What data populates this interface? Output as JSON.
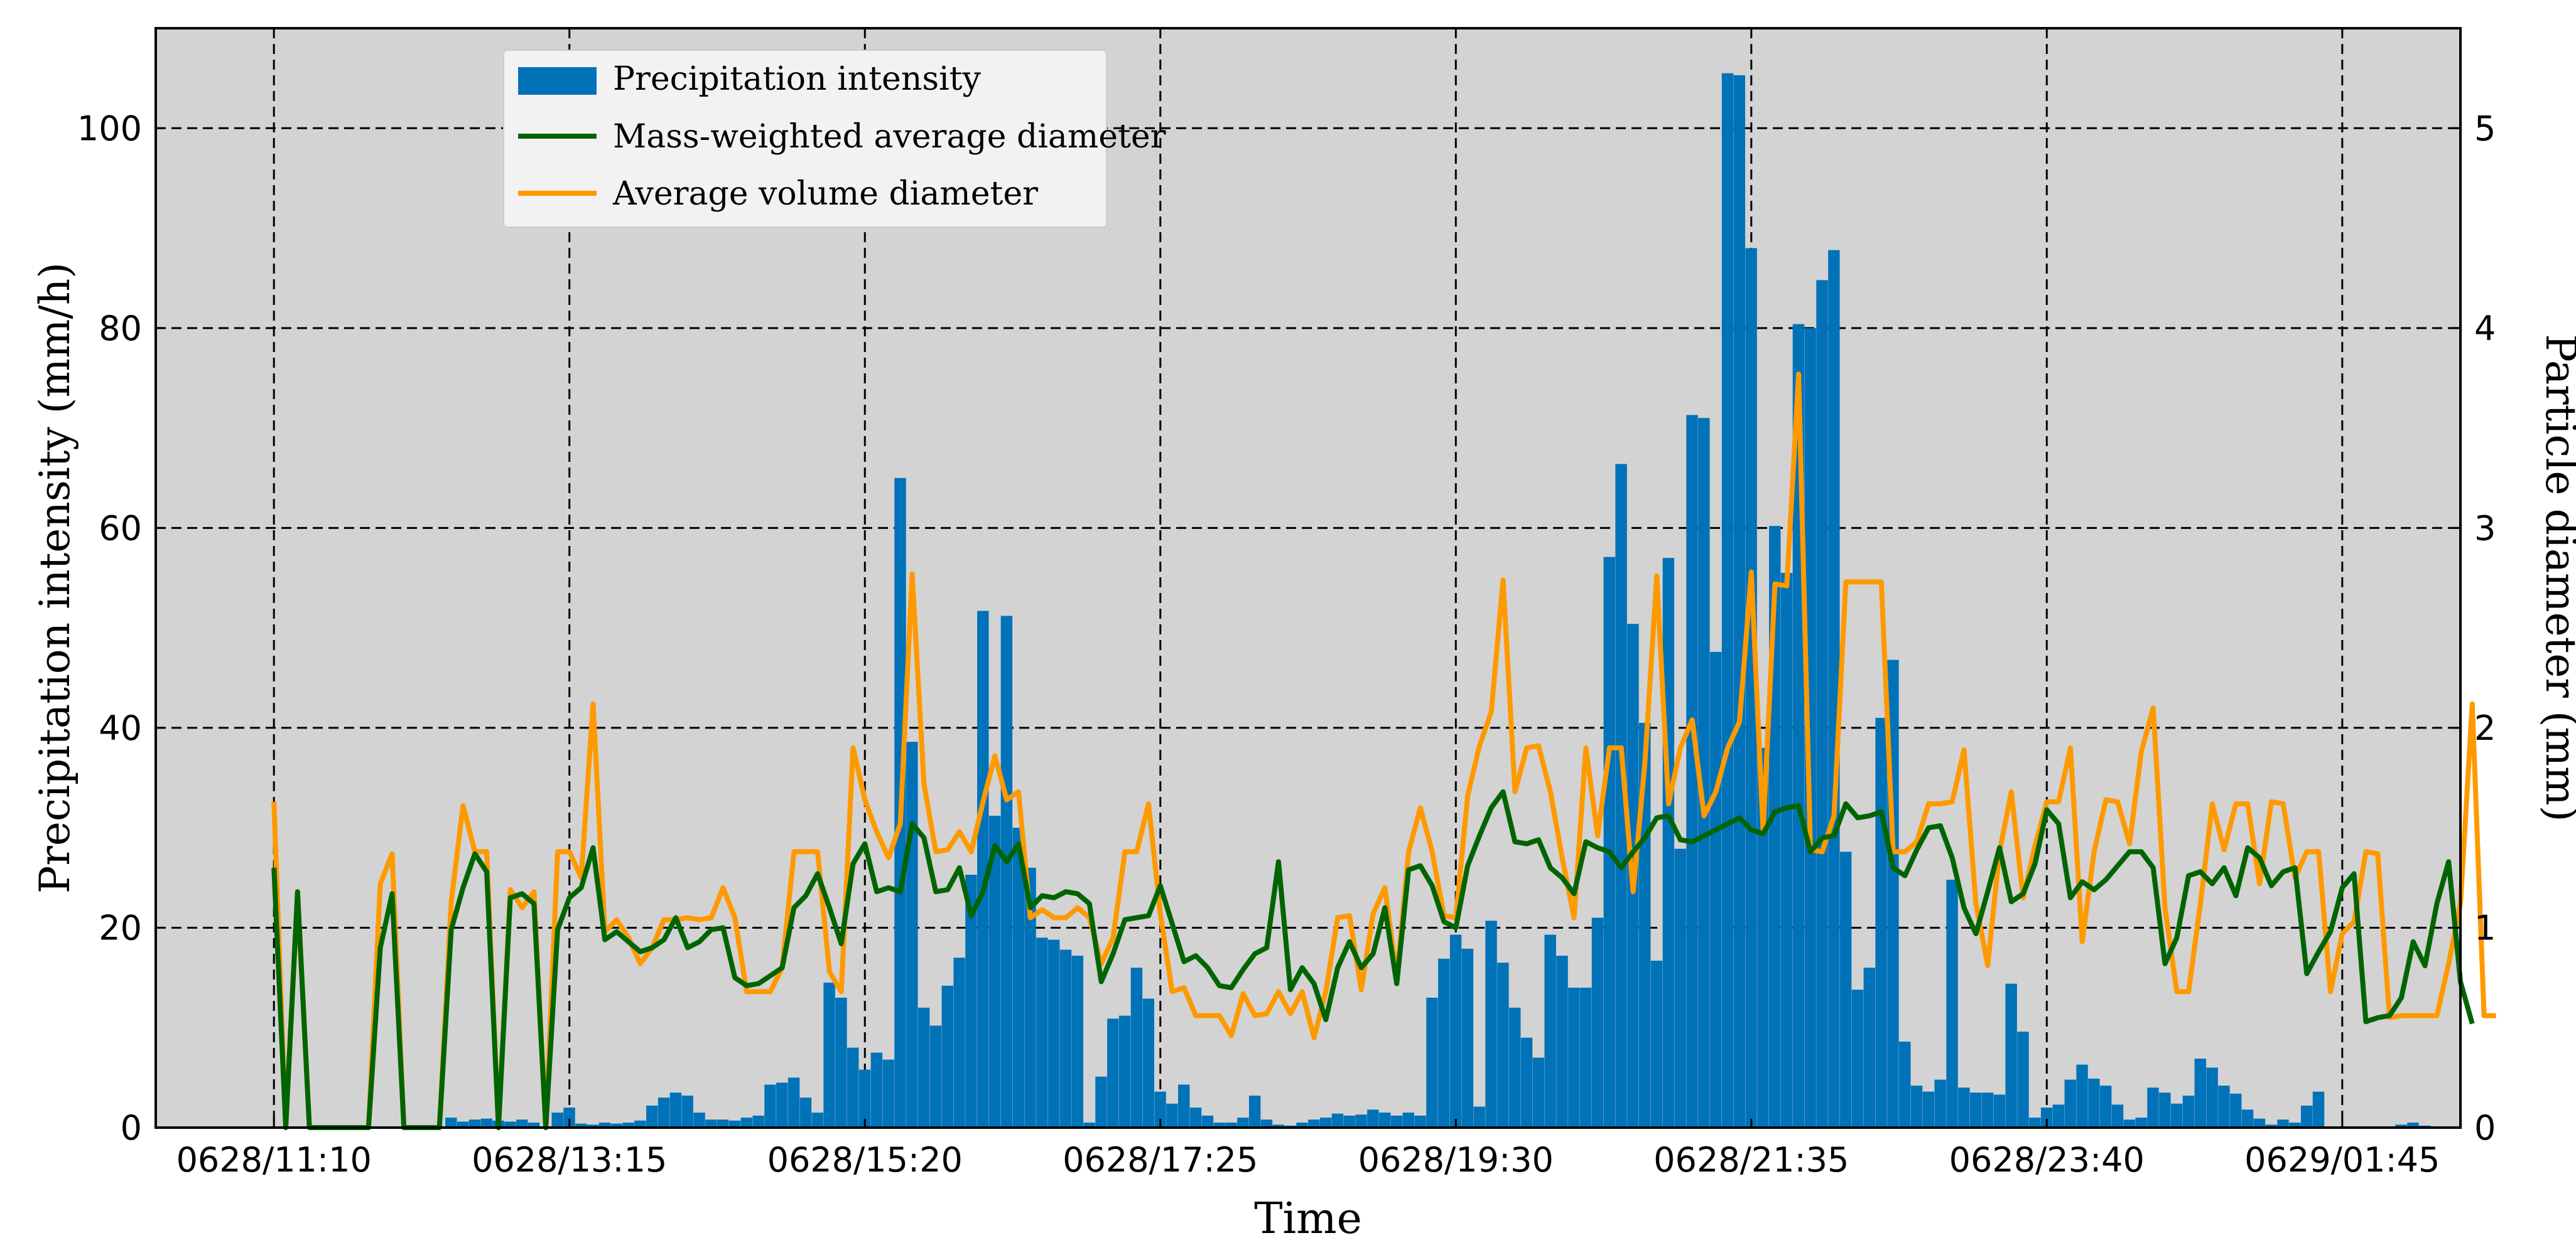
{
  "chart_data": {
    "type": "bar+line",
    "xlabel": "Time",
    "ylabel_left": "Precipitation intensity (mm/h)",
    "ylabel_right": "Particle diameter (mm)",
    "ylim_left": [
      0,
      110
    ],
    "ylim_right": [
      0,
      5.5
    ],
    "yticks_left": [
      "0",
      "20",
      "40",
      "60",
      "80",
      "100"
    ],
    "yticks_right": [
      "0",
      "1",
      "2",
      "3",
      "4",
      "5"
    ],
    "xticks": [
      {
        "index": 0,
        "label": "0628/11:10"
      },
      {
        "index": 25,
        "label": "0628/13:15"
      },
      {
        "index": 50,
        "label": "0628/15:20"
      },
      {
        "index": 75,
        "label": "0628/17:25"
      },
      {
        "index": 100,
        "label": "0628/19:30"
      },
      {
        "index": 125,
        "label": "0628/21:35"
      },
      {
        "index": 150,
        "label": "0628/23:40"
      },
      {
        "index": 175,
        "label": "0629/01:45"
      }
    ],
    "x_range": [
      -10,
      185
    ],
    "grid": true,
    "background": "#d3d3d3",
    "legend_position": "top-left",
    "series": [
      {
        "name": "Precipitation intensity",
        "kind": "bar",
        "axis": "left",
        "color": "#0072b8",
        "values": [
          0,
          0,
          0,
          0,
          0,
          0,
          0,
          0,
          0,
          0,
          0,
          0,
          0,
          0,
          0,
          1,
          0.6,
          0.8,
          0.9,
          0.7,
          0.6,
          0.8,
          0.5,
          0,
          1.5,
          2,
          0.4,
          0.3,
          0.5,
          0.4,
          0.5,
          0.7,
          2.2,
          3,
          3.5,
          3.2,
          1.5,
          0.8,
          0.8,
          0.7,
          1,
          1.2,
          4.3,
          4.5,
          5,
          3,
          1.5,
          14.5,
          13,
          8,
          5.8,
          7.5,
          6.8,
          65,
          38.6,
          12,
          10.2,
          14.2,
          17,
          25.3,
          51.7,
          31.2,
          51.2,
          30,
          26,
          19,
          18.8,
          17.8,
          17.2,
          0.5,
          5.1,
          10.9,
          11.2,
          16,
          12.9,
          3.6,
          2.4,
          4.3,
          2,
          1.2,
          0.5,
          0.5,
          1,
          3.2,
          0.8,
          0.3,
          0.2,
          0.5,
          0.8,
          1,
          1.4,
          1.2,
          1.3,
          1.8,
          1.5,
          1.2,
          1.5,
          1.2,
          13,
          16.9,
          19.3,
          17.9,
          2.1,
          20.7,
          16.5,
          12,
          9,
          7,
          19.3,
          17.2,
          14,
          14,
          21,
          57.1,
          66.4,
          50.4,
          40.5,
          16.7,
          57,
          27.9,
          71.3,
          71,
          47.6,
          105.5,
          105.3,
          88,
          38,
          60.2,
          55.5,
          80.4,
          80,
          84.8,
          87.8,
          27.6,
          13.8,
          16,
          41,
          46.8,
          8.6,
          4.2,
          3.6,
          4.8,
          24.8,
          4,
          3.5,
          3.5,
          3.3,
          14.4,
          9.6,
          1,
          2,
          2.3,
          4.8,
          6.3,
          4.9,
          4.2,
          2.3,
          0.8,
          1,
          4,
          3.5,
          2.4,
          3.2,
          6.9,
          6,
          4.2,
          3.4,
          1.8,
          0.9,
          0.3,
          0.8,
          0.5,
          2.2,
          3.6,
          0,
          0,
          0,
          0,
          0,
          0,
          0.3,
          0.5,
          0.2,
          0
        ]
      },
      {
        "name": "Mass-weighted average diameter",
        "kind": "line",
        "axis": "right",
        "color": "#006400",
        "values": [
          1.3,
          0,
          1.18,
          0,
          0,
          0,
          0,
          0,
          0,
          0.9,
          1.17,
          0,
          0,
          0,
          0,
          0.99,
          1.2,
          1.37,
          1.28,
          0,
          1.15,
          1.17,
          1.12,
          0,
          0.99,
          1.15,
          1.2,
          1.4,
          0.94,
          0.98,
          0.93,
          0.88,
          0.9,
          0.94,
          1.05,
          0.9,
          0.93,
          0.99,
          1,
          0.75,
          0.71,
          0.72,
          0.76,
          0.8,
          1.1,
          1.16,
          1.27,
          1.1,
          0.92,
          1.32,
          1.42,
          1.18,
          1.2,
          1.18,
          1.52,
          1.45,
          1.18,
          1.19,
          1.3,
          1.06,
          1.18,
          1.41,
          1.33,
          1.42,
          1.1,
          1.16,
          1.15,
          1.18,
          1.17,
          1.12,
          0.73,
          0.87,
          1.04,
          1.05,
          1.06,
          1.21,
          1.02,
          0.83,
          0.86,
          0.8,
          0.71,
          0.7,
          0.79,
          0.87,
          0.9,
          1.33,
          0.69,
          0.8,
          0.72,
          0.54,
          0.8,
          0.93,
          0.8,
          0.87,
          1.1,
          0.72,
          1.29,
          1.31,
          1.21,
          1.03,
          1.0,
          1.31,
          1.46,
          1.6,
          1.68,
          1.43,
          1.42,
          1.44,
          1.3,
          1.25,
          1.17,
          1.43,
          1.4,
          1.38,
          1.3,
          1.38,
          1.45,
          1.55,
          1.56,
          1.44,
          1.43,
          1.46,
          1.49,
          1.52,
          1.55,
          1.49,
          1.47,
          1.58,
          1.6,
          1.61,
          1.38,
          1.45,
          1.46,
          1.62,
          1.55,
          1.56,
          1.58,
          1.3,
          1.26,
          1.39,
          1.5,
          1.51,
          1.35,
          1.1,
          0.97,
          1.18,
          1.4,
          1.13,
          1.17,
          1.32,
          1.59,
          1.52,
          1.15,
          1.23,
          1.19,
          1.24,
          1.31,
          1.38,
          1.38,
          1.3,
          0.82,
          0.95,
          1.26,
          1.28,
          1.22,
          1.3,
          1.16,
          1.4,
          1.35,
          1.21,
          1.28,
          1.3,
          0.77,
          0.88,
          0.98,
          1.2,
          1.27,
          0.53,
          0.55,
          0.56,
          0.65,
          0.93,
          0.81,
          1.12,
          1.33,
          0.73,
          0.52
        ]
      },
      {
        "name": "Average volume diameter",
        "kind": "line",
        "axis": "right",
        "color": "#ff9900",
        "values": [
          1.63,
          0,
          1.18,
          0,
          0,
          0,
          0,
          0,
          0,
          1.22,
          1.37,
          0,
          0,
          0,
          0,
          1.13,
          1.61,
          1.38,
          1.38,
          0,
          1.19,
          1.1,
          1.18,
          0,
          1.38,
          1.38,
          1.25,
          2.12,
          0.98,
          1.04,
          0.95,
          0.82,
          0.9,
          1.04,
          1.04,
          1.05,
          1.04,
          1.05,
          1.2,
          1.05,
          0.68,
          0.68,
          0.68,
          0.8,
          1.38,
          1.38,
          1.38,
          0.78,
          0.68,
          1.9,
          1.64,
          1.48,
          1.35,
          1.52,
          2.77,
          1.72,
          1.38,
          1.39,
          1.48,
          1.38,
          1.63,
          1.86,
          1.64,
          1.68,
          1.05,
          1.09,
          1.05,
          1.05,
          1.1,
          1.05,
          0.82,
          0.95,
          1.38,
          1.38,
          1.62,
          1.07,
          0.68,
          0.7,
          0.56,
          0.56,
          0.56,
          0.46,
          0.67,
          0.56,
          0.57,
          0.68,
          0.57,
          0.68,
          0.45,
          0.68,
          1.05,
          1.06,
          0.69,
          1.07,
          1.2,
          0.75,
          1.38,
          1.6,
          1.38,
          1.06,
          1.05,
          1.66,
          1.91,
          2.08,
          2.74,
          1.68,
          1.9,
          1.91,
          1.68,
          1.35,
          1.05,
          1.9,
          1.46,
          1.9,
          1.9,
          1.18,
          1.83,
          2.76,
          1.62,
          1.9,
          2.04,
          1.56,
          1.68,
          1.9,
          2.03,
          2.78,
          1.48,
          2.72,
          2.71,
          3.77,
          1.39,
          1.38,
          1.56,
          2.73,
          2.73,
          2.73,
          2.73,
          1.38,
          1.38,
          1.43,
          1.62,
          1.62,
          1.63,
          1.89,
          1.12,
          0.81,
          1.38,
          1.68,
          1.15,
          1.41,
          1.63,
          1.63,
          1.9,
          0.93,
          1.38,
          1.64,
          1.63,
          1.42,
          1.88,
          2.1,
          1.1,
          0.68,
          0.68,
          1.12,
          1.62,
          1.39,
          1.62,
          1.62,
          1.22,
          1.63,
          1.62,
          1.25,
          1.38,
          1.38,
          0.68,
          0.97,
          1.03,
          1.38,
          1.37,
          0.55,
          0.56,
          0.56,
          0.56,
          0.56,
          0.82,
          1.12,
          2.12,
          0.56,
          0.56
        ]
      }
    ]
  }
}
